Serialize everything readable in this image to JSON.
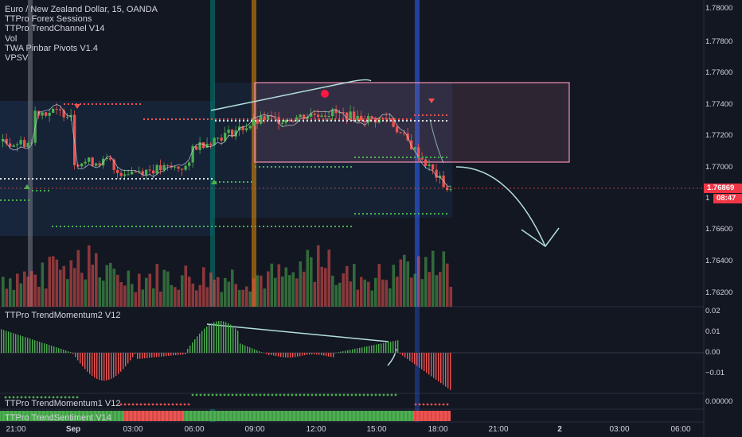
{
  "legend": {
    "symbol": "Euro / New Zealand Dollar, 15, OANDA",
    "indicators": [
      "TTPro Forex Sessions",
      "TTPro TrendChannel V14",
      "Vol",
      "TWA Pinbar Pivots V1.4",
      "VPSV"
    ]
  },
  "panes": {
    "momentum2_title": "TTPro TrendMomentum2 V12",
    "momentum1_title": "TTPro TrendMomentum1 V12",
    "sentiment_title": "TTPro TrendSentiment V14"
  },
  "price_axis": {
    "main_ticks": [
      "1.78000",
      "1.77800",
      "1.77600",
      "1.77400",
      "1.77200",
      "1.77000",
      "1.76600",
      "1.76400",
      "1.76200"
    ],
    "hidden_tick_stub": "1",
    "last_price": "1.76869",
    "countdown": "08:47"
  },
  "momentum2_axis": [
    "0.02",
    "0.01",
    "0.00",
    "−0.01"
  ],
  "momentum1_axis": [
    "0.00000"
  ],
  "time_axis": [
    {
      "label": "21:00",
      "bold": false
    },
    {
      "label": "Sep",
      "bold": true
    },
    {
      "label": "03:00",
      "bold": false
    },
    {
      "label": "06:00",
      "bold": false
    },
    {
      "label": "09:00",
      "bold": false
    },
    {
      "label": "12:00",
      "bold": false
    },
    {
      "label": "15:00",
      "bold": false
    },
    {
      "label": "18:00",
      "bold": false
    },
    {
      "label": "21:00",
      "bold": false
    },
    {
      "label": "2",
      "bold": true
    },
    {
      "label": "03:00",
      "bold": false
    },
    {
      "label": "06:00",
      "bold": false
    }
  ],
  "colors": {
    "background": "#131722",
    "up": "#26a69a",
    "up_bright": "#4caf50",
    "down": "#ef5350",
    "session_gray": "#787b86",
    "session_teal": "#00897b",
    "session_orange": "#ff9800",
    "session_blue": "#2962ff",
    "channel_pink": "#f48fb1",
    "support_green": "#4caf50",
    "resistance_red": "#ef5350",
    "price_tag": "#f23645"
  }
}
